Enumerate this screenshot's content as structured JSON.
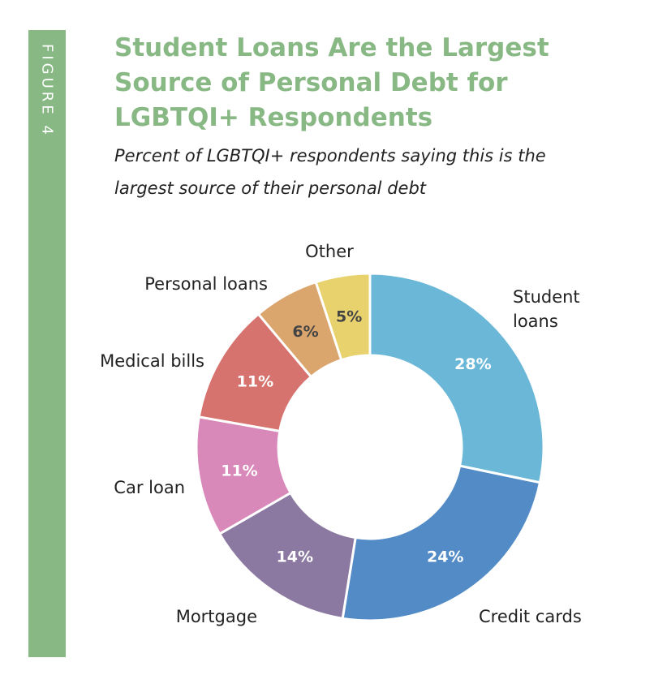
{
  "figure_label": "FIGURE 4",
  "colors": {
    "accent": "#88b884",
    "segment_border": "#ffffff"
  },
  "chart_data": {
    "type": "pie",
    "title": "Student Loans Are the Largest Source of Personal Debt for LGBTQI+ Respondents",
    "subtitle": "Percent of LGBTQI+ respondents saying this is the largest source of their personal debt",
    "donut": true,
    "unit": "%",
    "slices": [
      {
        "label": "Student loans",
        "value": 28,
        "display": "28%",
        "color": "#6ab7d8",
        "value_color": "#ffffff"
      },
      {
        "label": "Credit cards",
        "value": 24,
        "display": "24%",
        "color": "#528bc6",
        "value_color": "#ffffff"
      },
      {
        "label": "Mortgage",
        "value": 14,
        "display": "14%",
        "color": "#8b79a2",
        "value_color": "#ffffff"
      },
      {
        "label": "Car loan",
        "value": 11,
        "display": "11%",
        "color": "#d888b9",
        "value_color": "#ffffff"
      },
      {
        "label": "Medical bills",
        "value": 11,
        "display": "11%",
        "color": "#d6736e",
        "value_color": "#ffffff"
      },
      {
        "label": "Personal loans",
        "value": 6,
        "display": "6%",
        "color": "#dba66e",
        "value_color": "#444444"
      },
      {
        "label": "Other",
        "value": 5,
        "display": "5%",
        "color": "#e8d26e",
        "value_color": "#444444"
      }
    ]
  }
}
